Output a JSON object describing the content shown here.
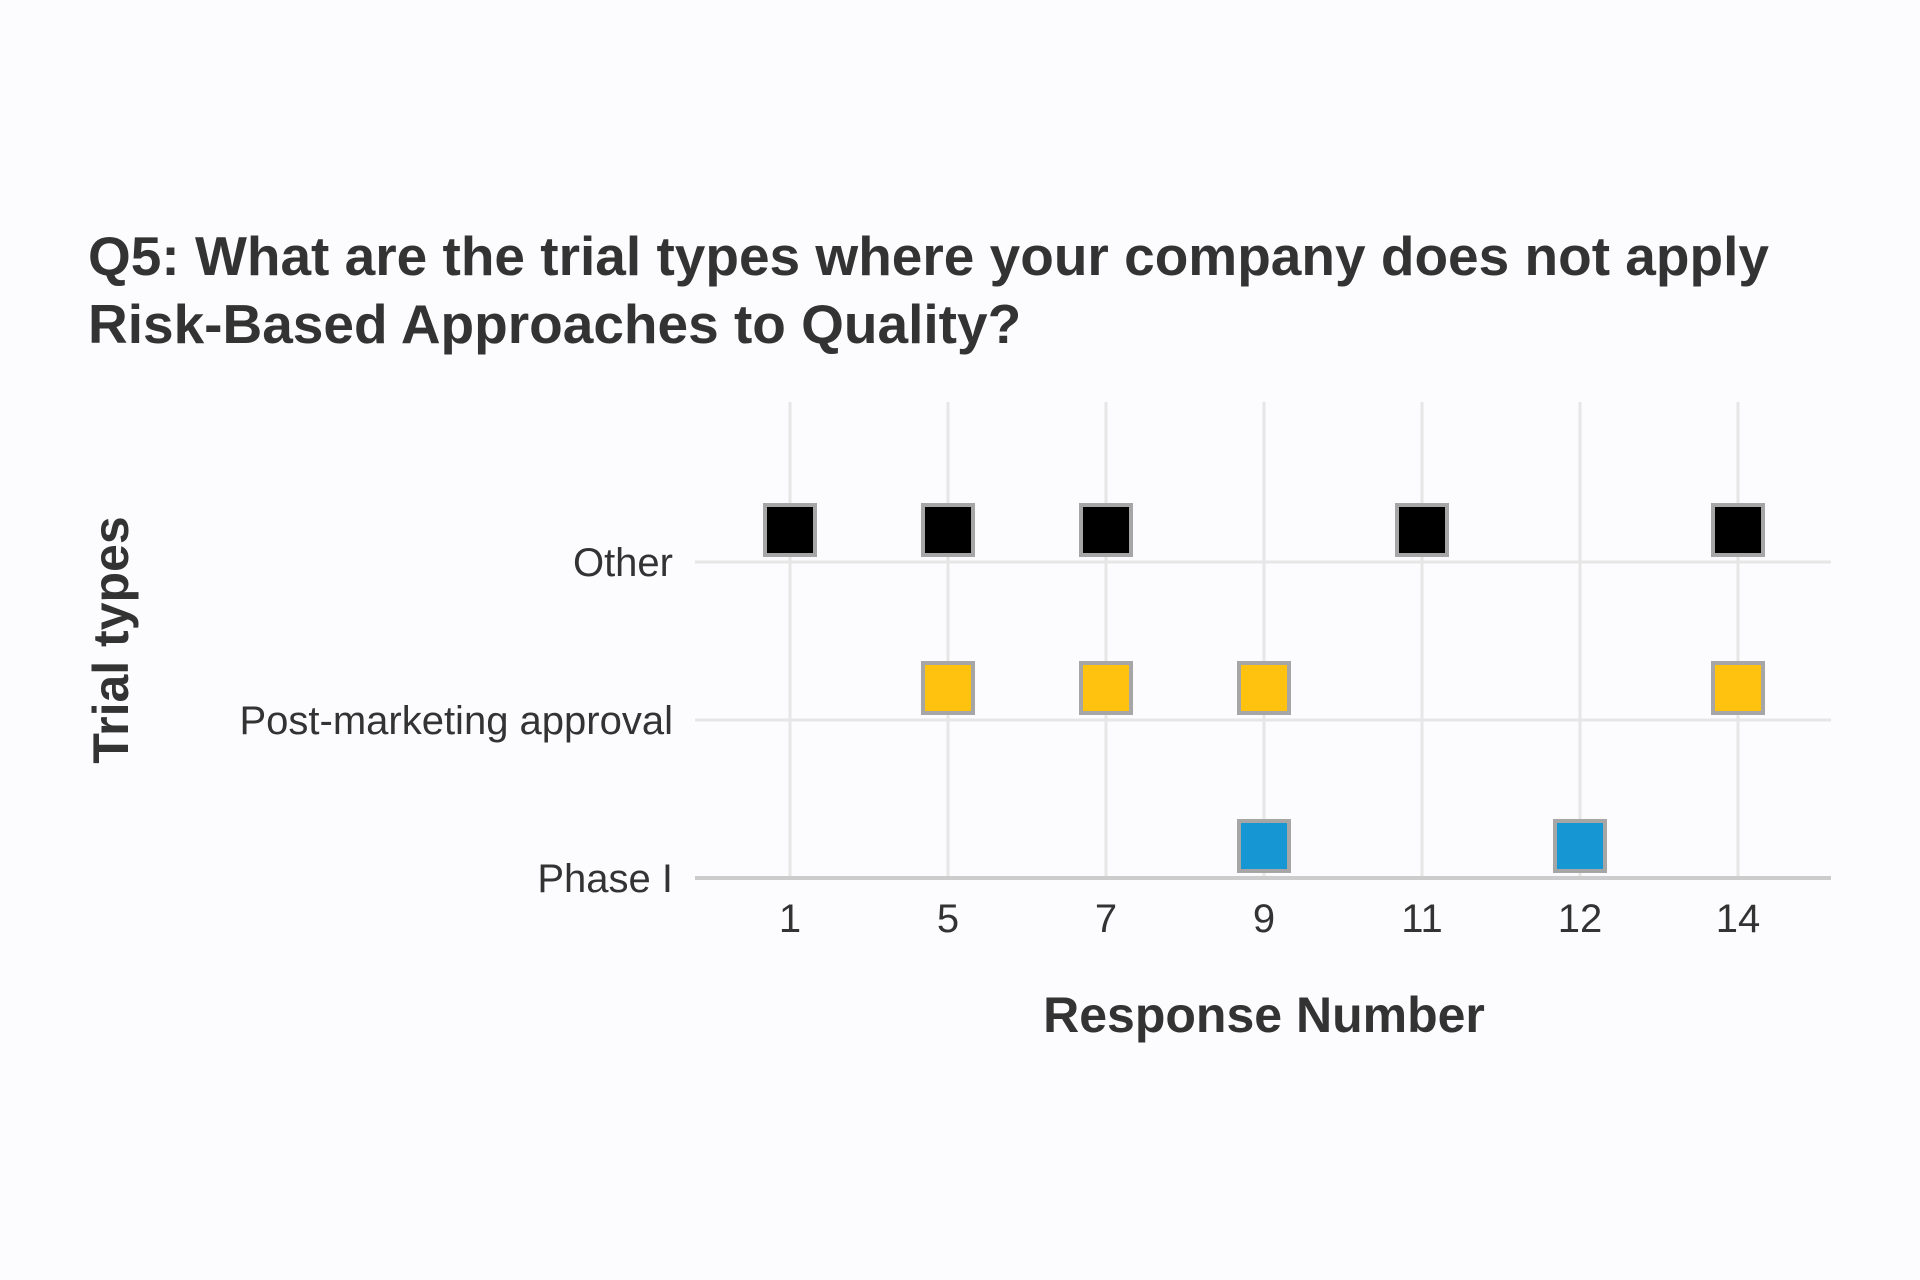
{
  "chart_data": {
    "type": "scatter",
    "title": "Q5: What are the trial types where your company does not apply Risk-Based Approaches to Quality?",
    "xlabel": "Response Number",
    "ylabel": "Trial types",
    "x_categories": [
      "1",
      "5",
      "7",
      "9",
      "11",
      "12",
      "14"
    ],
    "y_categories": [
      "Phase I",
      "Post-marketing approval",
      "Other"
    ],
    "grid": true,
    "legend": "none",
    "marker": "square",
    "series": [
      {
        "category": "Other",
        "color": "#000000",
        "x": [
          "1",
          "5",
          "7",
          "11",
          "14"
        ]
      },
      {
        "category": "Post-marketing approval",
        "color": "#FFC20E",
        "x": [
          "5",
          "7",
          "9",
          "14"
        ]
      },
      {
        "category": "Phase I",
        "color": "#1696D2",
        "x": [
          "9",
          "12"
        ]
      }
    ],
    "colors": {
      "marker_border": "#A6A6A6",
      "grid": "#E6E6E6",
      "axis": "#CCCCCC",
      "text": "#333333"
    }
  }
}
